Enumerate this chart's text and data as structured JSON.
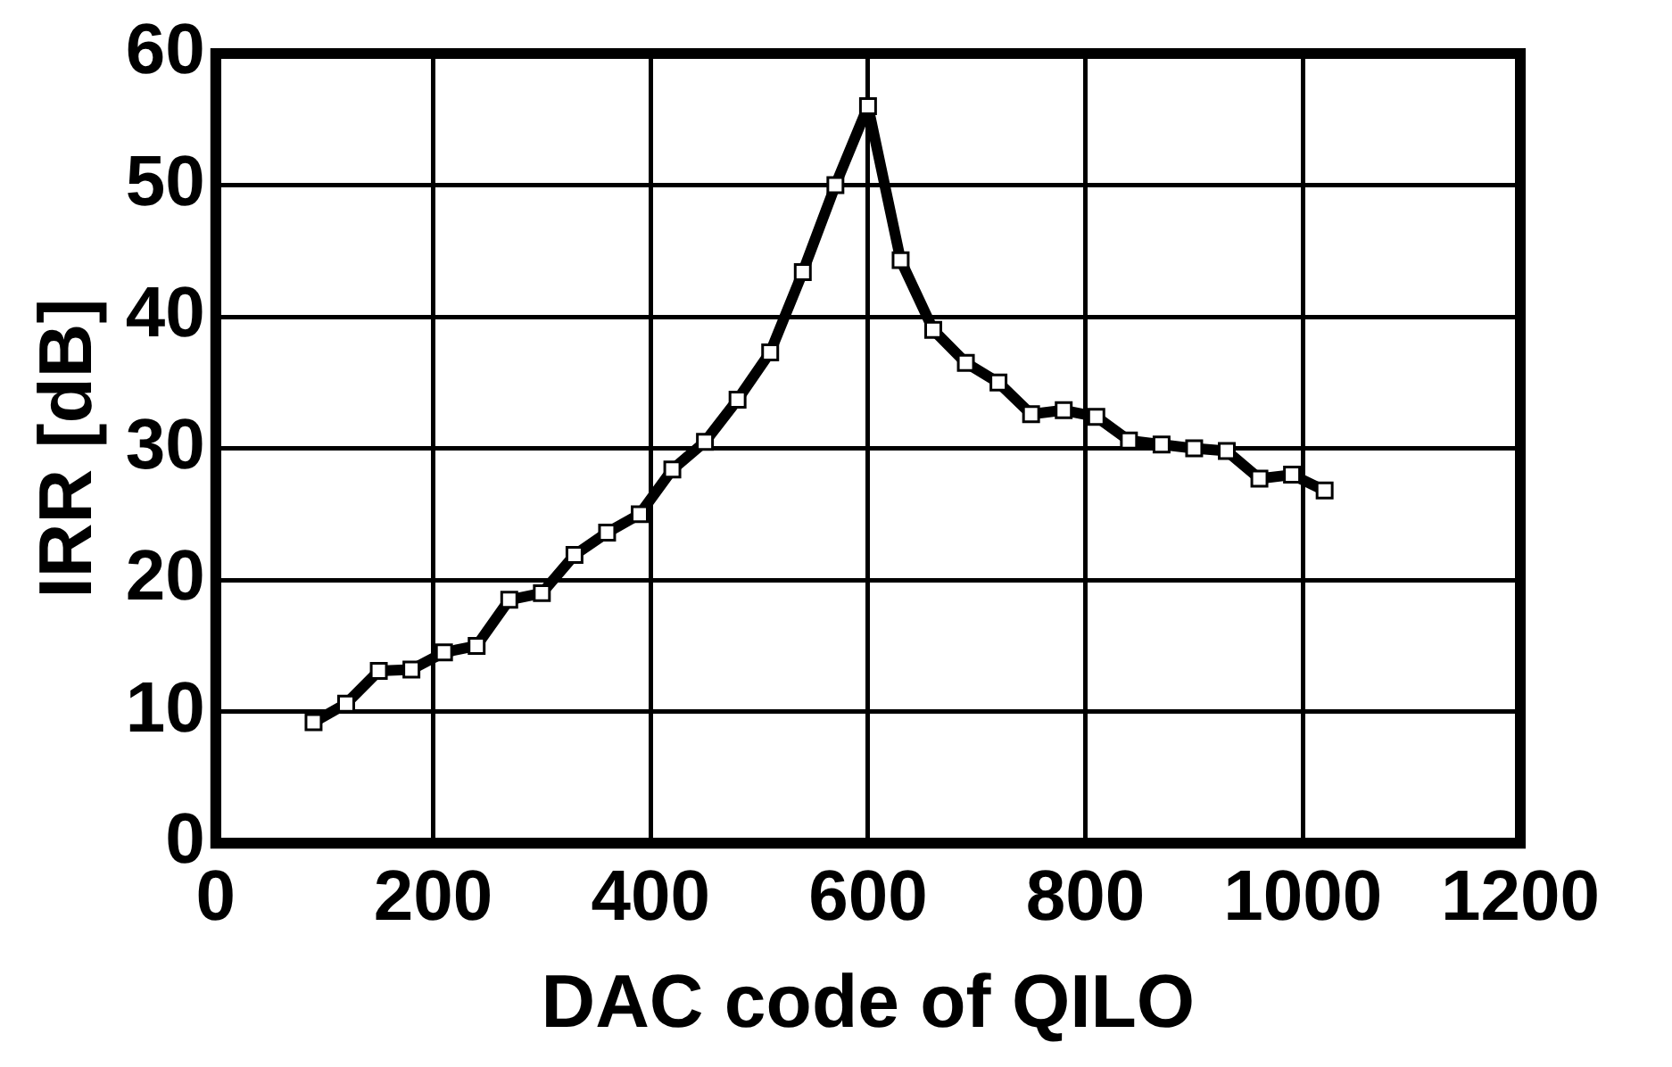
{
  "chart_data": {
    "type": "line",
    "xlabel": "DAC code of QILO",
    "ylabel": "IRR [dB]",
    "x": [
      90,
      120,
      150,
      180,
      210,
      240,
      270,
      300,
      330,
      360,
      390,
      420,
      450,
      480,
      510,
      540,
      570,
      600,
      630,
      660,
      690,
      720,
      750,
      780,
      810,
      840,
      870,
      900,
      930,
      960,
      990,
      1020
    ],
    "series": [
      {
        "color": "#000000",
        "values": [
          9.2,
          10.6,
          13.1,
          13.2,
          14.5,
          15.0,
          18.5,
          19.0,
          21.9,
          23.6,
          25.0,
          28.4,
          30.5,
          33.7,
          37.3,
          43.4,
          50.0,
          56.0,
          44.3,
          39.0,
          36.5,
          35.0,
          32.6,
          32.9,
          32.4,
          30.6,
          30.3,
          30.0,
          29.8,
          27.7,
          28.0,
          26.8
        ]
      }
    ],
    "xlim": [
      0,
      1200
    ],
    "xticks": [
      0,
      200,
      400,
      600,
      800,
      1000,
      1200
    ],
    "ylim": [
      0,
      60
    ],
    "yticks": [
      0,
      10,
      20,
      30,
      40,
      50,
      60
    ],
    "grid": true,
    "legend": false,
    "marker": "square",
    "line_style": "solid"
  }
}
